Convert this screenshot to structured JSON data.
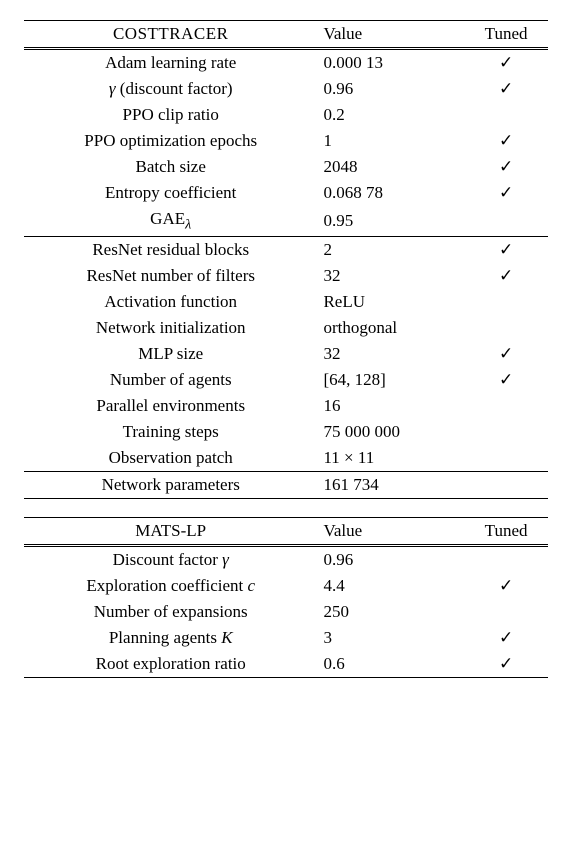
{
  "table1": {
    "header": {
      "name": "COSTTRACER",
      "value": "Value",
      "tuned": "Tuned"
    },
    "groups": [
      {
        "rows": [
          {
            "param": "Adam learning rate",
            "value": "0.000 13",
            "tuned": "✓"
          },
          {
            "param": "γ (discount factor)",
            "value": "0.96",
            "tuned": "✓"
          },
          {
            "param": "PPO clip ratio",
            "value": "0.2",
            "tuned": ""
          },
          {
            "param": "PPO optimization epochs",
            "value": "1",
            "tuned": "✓"
          },
          {
            "param": "Batch size",
            "value": "2048",
            "tuned": "✓"
          },
          {
            "param": "Entropy coefficient",
            "value": "0.068 78",
            "tuned": "✓"
          },
          {
            "param": "GAEλ",
            "value": "0.95",
            "tuned": ""
          }
        ]
      },
      {
        "rows": [
          {
            "param": "ResNet residual blocks",
            "value": "2",
            "tuned": "✓"
          },
          {
            "param": "ResNet number of filters",
            "value": "32",
            "tuned": "✓"
          },
          {
            "param": "Activation function",
            "value": "ReLU",
            "tuned": ""
          },
          {
            "param": "Network initialization",
            "value": "orthogonal",
            "tuned": ""
          },
          {
            "param": "MLP size",
            "value": "32",
            "tuned": "✓"
          },
          {
            "param": "Number of agents",
            "value": "[64, 128]",
            "tuned": "✓"
          },
          {
            "param": "Parallel environments",
            "value": "16",
            "tuned": ""
          },
          {
            "param": "Training steps",
            "value": "75 000 000",
            "tuned": ""
          },
          {
            "param": "Observation patch",
            "value": "11 × 11",
            "tuned": ""
          }
        ]
      },
      {
        "rows": [
          {
            "param": "Network parameters",
            "value": "161 734",
            "tuned": ""
          }
        ]
      }
    ]
  },
  "table2": {
    "header": {
      "name": "MATS-LP",
      "value": "Value",
      "tuned": "Tuned"
    },
    "groups": [
      {
        "rows": [
          {
            "param": "Discount factor γ",
            "value": "0.96",
            "tuned": ""
          },
          {
            "param": "Exploration coefficient c",
            "value": "4.4",
            "tuned": "✓"
          },
          {
            "param": "Number of expansions",
            "value": "250",
            "tuned": ""
          },
          {
            "param": "Planning agents K",
            "value": "3",
            "tuned": "✓"
          },
          {
            "param": "Root exploration ratio",
            "value": "0.6",
            "tuned": "✓"
          }
        ]
      }
    ]
  }
}
